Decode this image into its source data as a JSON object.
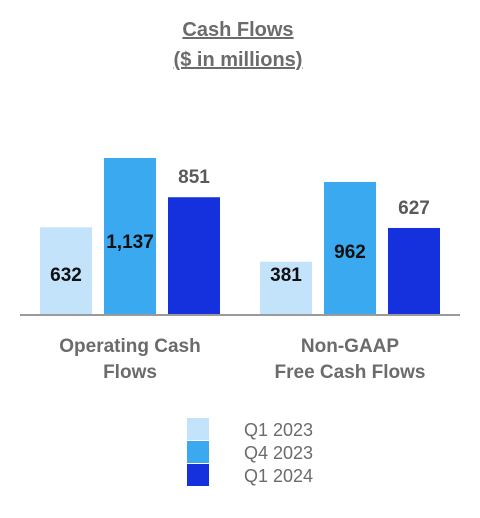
{
  "chart_data": {
    "type": "bar",
    "title": "Cash Flows",
    "subtitle": "($ in millions)",
    "categories": [
      [
        "Operating Cash",
        "Flows"
      ],
      [
        "Non-GAAP",
        "Free Cash Flows"
      ]
    ],
    "series": [
      {
        "name": "Q1 2023",
        "color": "#c3e3fb",
        "values": [
          632,
          381
        ],
        "labels": [
          "632",
          "381"
        ]
      },
      {
        "name": "Q4 2023",
        "color": "#3aa9f0",
        "values": [
          1137,
          962
        ],
        "labels": [
          "1,137",
          "962"
        ]
      },
      {
        "name": "Q1 2024",
        "color": "#1530dd",
        "values": [
          851,
          627
        ],
        "labels": [
          "851",
          "627"
        ]
      }
    ],
    "ylim": [
      0,
      1200
    ],
    "grid": false,
    "legend_position": "bottom-center"
  }
}
